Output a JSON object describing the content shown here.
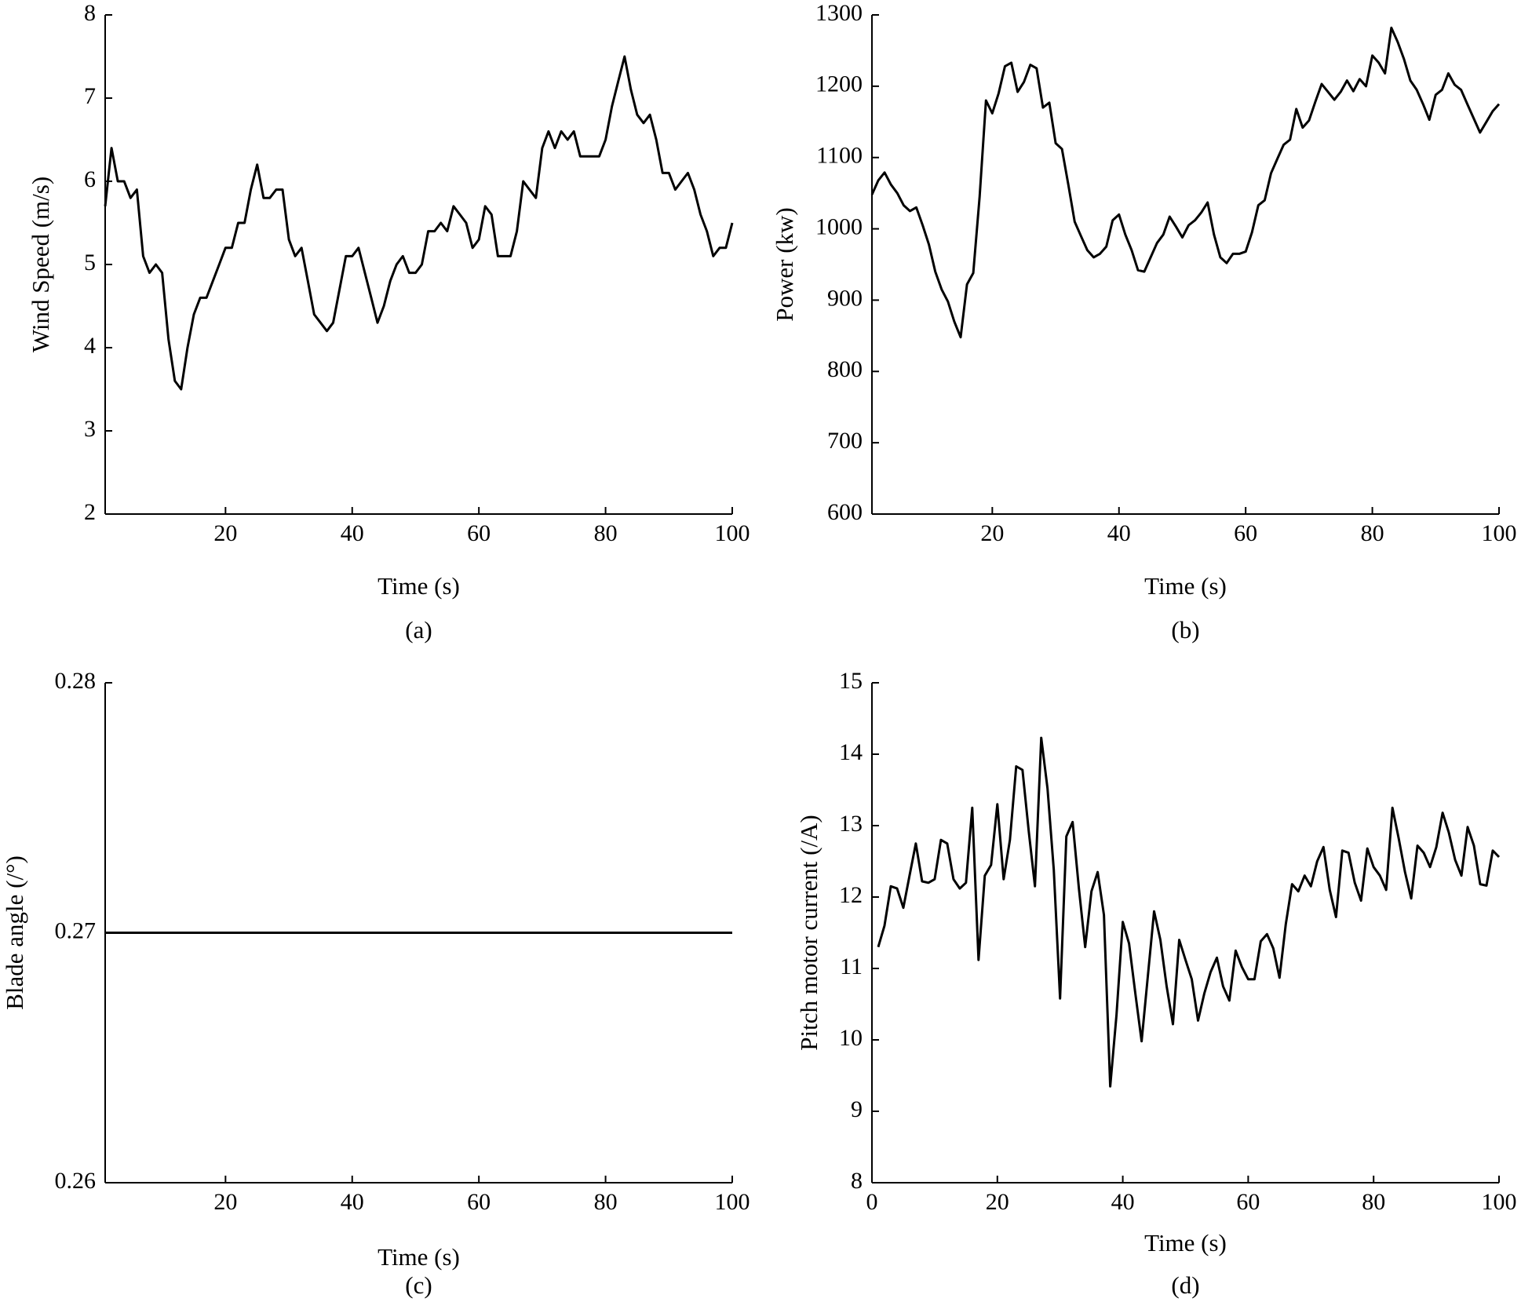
{
  "colors": {
    "line": "#000000",
    "axis": "#000000",
    "background": "#ffffff"
  },
  "chart_data": [
    {
      "id": "a",
      "type": "line",
      "caption": "(a)",
      "xlabel": "Time (s)",
      "ylabel": "Wind Speed (m/s)",
      "xlim": [
        1,
        100
      ],
      "ylim": [
        2,
        8
      ],
      "xticks": [
        20,
        40,
        60,
        80,
        100
      ],
      "yticks": [
        2,
        3,
        4,
        5,
        6,
        7,
        8
      ],
      "grid": false,
      "series": [
        {
          "name": "Wind speed",
          "x": [
            1,
            2,
            3,
            4,
            5,
            6,
            7,
            8,
            9,
            10,
            11,
            12,
            13,
            14,
            15,
            16,
            17,
            18,
            19,
            20,
            21,
            22,
            23,
            24,
            25,
            26,
            27,
            28,
            29,
            30,
            31,
            32,
            33,
            34,
            35,
            36,
            37,
            38,
            39,
            40,
            41,
            42,
            43,
            44,
            45,
            46,
            47,
            48,
            49,
            50,
            51,
            52,
            53,
            54,
            55,
            56,
            57,
            58,
            59,
            60,
            61,
            62,
            63,
            64,
            65,
            66,
            67,
            68,
            69,
            70,
            71,
            72,
            73,
            74,
            75,
            76,
            77,
            78,
            79,
            80,
            81,
            82,
            83,
            84,
            85,
            86,
            87,
            88,
            89,
            90,
            91,
            92,
            93,
            94,
            95,
            96,
            97,
            98,
            99,
            100
          ],
          "values": [
            5.7,
            6.4,
            6.0,
            6.0,
            5.8,
            5.9,
            5.1,
            4.9,
            5.0,
            4.9,
            4.1,
            3.6,
            3.5,
            4.0,
            4.4,
            4.6,
            4.6,
            4.8,
            5.0,
            5.2,
            5.2,
            5.5,
            5.5,
            5.9,
            6.2,
            5.8,
            5.8,
            5.9,
            5.9,
            5.3,
            5.1,
            5.2,
            4.8,
            4.4,
            4.3,
            4.2,
            4.3,
            4.7,
            5.1,
            5.1,
            5.2,
            4.9,
            4.6,
            4.3,
            4.5,
            4.8,
            5.0,
            5.1,
            4.9,
            4.9,
            5.0,
            5.4,
            5.4,
            5.5,
            5.4,
            5.7,
            5.6,
            5.5,
            5.2,
            5.3,
            5.7,
            5.6,
            5.1,
            5.1,
            5.1,
            5.4,
            6.0,
            5.9,
            5.8,
            6.4,
            6.6,
            6.4,
            6.6,
            6.5,
            6.6,
            6.3,
            6.3,
            6.3,
            6.3,
            6.5,
            6.9,
            7.2,
            7.5,
            7.1,
            6.8,
            6.7,
            6.8,
            6.5,
            6.1,
            6.1,
            5.9,
            6.0,
            6.1,
            5.9,
            5.6,
            5.4,
            5.1,
            5.2,
            5.2,
            5.5
          ]
        }
      ]
    },
    {
      "id": "b",
      "type": "line",
      "caption": "(b)",
      "xlabel": "Time (s)",
      "ylabel": "Power (kw)",
      "xlim": [
        1,
        100
      ],
      "ylim": [
        600,
        1300
      ],
      "xticks": [
        20,
        40,
        60,
        80,
        100
      ],
      "yticks": [
        600,
        700,
        800,
        900,
        1000,
        1100,
        1200,
        1300
      ],
      "grid": false,
      "series": [
        {
          "name": "Power",
          "x": [
            1,
            2,
            3,
            4,
            5,
            6,
            7,
            8,
            9,
            10,
            11,
            12,
            13,
            14,
            15,
            16,
            17,
            18,
            19,
            20,
            21,
            22,
            23,
            24,
            25,
            26,
            27,
            28,
            29,
            30,
            31,
            32,
            33,
            34,
            35,
            36,
            37,
            38,
            39,
            40,
            41,
            42,
            43,
            44,
            45,
            46,
            47,
            48,
            49,
            50,
            51,
            52,
            53,
            54,
            55,
            56,
            57,
            58,
            59,
            60,
            61,
            62,
            63,
            64,
            65,
            66,
            67,
            68,
            69,
            70,
            71,
            72,
            73,
            74,
            75,
            76,
            77,
            78,
            79,
            80,
            81,
            82,
            83,
            84,
            85,
            86,
            87,
            88,
            89,
            90,
            91,
            92,
            93,
            94,
            95,
            96,
            97,
            98,
            99,
            100
          ],
          "values": [
            1048,
            1068,
            1079,
            1062,
            1050,
            1033,
            1025,
            1030,
            1005,
            978,
            940,
            915,
            898,
            870,
            848,
            922,
            938,
            1045,
            1180,
            1162,
            1190,
            1228,
            1233,
            1192,
            1206,
            1230,
            1225,
            1170,
            1177,
            1120,
            1112,
            1062,
            1010,
            990,
            970,
            960,
            965,
            975,
            1012,
            1020,
            992,
            970,
            942,
            940,
            960,
            980,
            992,
            1017,
            1003,
            988,
            1005,
            1012,
            1023,
            1037,
            992,
            960,
            952,
            965,
            965,
            968,
            995,
            1033,
            1040,
            1078,
            1098,
            1118,
            1125,
            1168,
            1142,
            1152,
            1178,
            1203,
            1192,
            1181,
            1192,
            1208,
            1193,
            1210,
            1200,
            1243,
            1233,
            1218,
            1282,
            1262,
            1238,
            1208,
            1195,
            1175,
            1153,
            1188,
            1195,
            1218,
            1202,
            1195,
            1175,
            1155,
            1135,
            1150,
            1165,
            1175
          ]
        }
      ]
    },
    {
      "id": "c",
      "type": "line",
      "caption": "(c)",
      "xlabel": "Time (s)",
      "ylabel": "Blade angle (/°)",
      "xlim": [
        1,
        100
      ],
      "ylim": [
        0.26,
        0.28
      ],
      "xticks": [
        20,
        40,
        60,
        80,
        100
      ],
      "yticks": [
        0.26,
        0.27,
        0.28
      ],
      "ytick_labels": [
        "0.26",
        "0.27",
        "0.28"
      ],
      "grid": false,
      "series": [
        {
          "name": "Blade angle",
          "x": [
            1,
            100
          ],
          "values": [
            0.27,
            0.27
          ]
        }
      ]
    },
    {
      "id": "d",
      "type": "line",
      "caption": "(d)",
      "xlabel": "Time (s)",
      "ylabel": "Pitch motor current (/A)",
      "xlim": [
        0,
        100
      ],
      "ylim": [
        8,
        15
      ],
      "xticks": [
        0,
        20,
        40,
        60,
        80,
        100
      ],
      "yticks": [
        8,
        9,
        10,
        11,
        12,
        13,
        14,
        15
      ],
      "grid": false,
      "series": [
        {
          "name": "Pitch motor current",
          "x": [
            1,
            2,
            3,
            4,
            5,
            6,
            7,
            8,
            9,
            10,
            11,
            12,
            13,
            14,
            15,
            16,
            17,
            18,
            19,
            20,
            21,
            22,
            23,
            24,
            25,
            26,
            27,
            28,
            29,
            30,
            31,
            32,
            33,
            34,
            35,
            36,
            37,
            38,
            39,
            40,
            41,
            42,
            43,
            44,
            45,
            46,
            47,
            48,
            49,
            50,
            51,
            52,
            53,
            54,
            55,
            56,
            57,
            58,
            59,
            60,
            61,
            62,
            63,
            64,
            65,
            66,
            67,
            68,
            69,
            70,
            71,
            72,
            73,
            74,
            75,
            76,
            77,
            78,
            79,
            80,
            81,
            82,
            83,
            84,
            85,
            86,
            87,
            88,
            89,
            90,
            91,
            92,
            93,
            94,
            95,
            96,
            97,
            98,
            99,
            100
          ],
          "values": [
            11.3,
            11.6,
            12.15,
            12.12,
            11.85,
            12.3,
            12.75,
            12.22,
            12.2,
            12.25,
            12.8,
            12.75,
            12.25,
            12.12,
            12.2,
            13.25,
            11.12,
            12.3,
            12.45,
            13.3,
            12.25,
            12.8,
            13.83,
            13.78,
            12.92,
            12.15,
            14.23,
            13.52,
            12.38,
            10.58,
            12.85,
            13.05,
            12.12,
            11.3,
            12.08,
            12.35,
            11.75,
            9.35,
            10.35,
            11.65,
            11.35,
            10.65,
            9.98,
            10.9,
            11.8,
            11.4,
            10.75,
            10.22,
            11.4,
            11.12,
            10.85,
            10.27,
            10.65,
            10.95,
            11.15,
            10.75,
            10.55,
            11.25,
            11.02,
            10.85,
            10.85,
            11.38,
            11.48,
            11.28,
            10.87,
            11.62,
            12.18,
            12.08,
            12.3,
            12.15,
            12.5,
            12.7,
            12.1,
            11.72,
            12.65,
            12.62,
            12.2,
            11.95,
            12.68,
            12.42,
            12.3,
            12.1,
            13.25,
            12.82,
            12.35,
            11.98,
            12.72,
            12.62,
            12.42,
            12.7,
            13.18,
            12.9,
            12.52,
            12.3,
            12.98,
            12.72,
            12.18,
            12.16,
            12.65,
            12.56
          ]
        }
      ]
    }
  ]
}
